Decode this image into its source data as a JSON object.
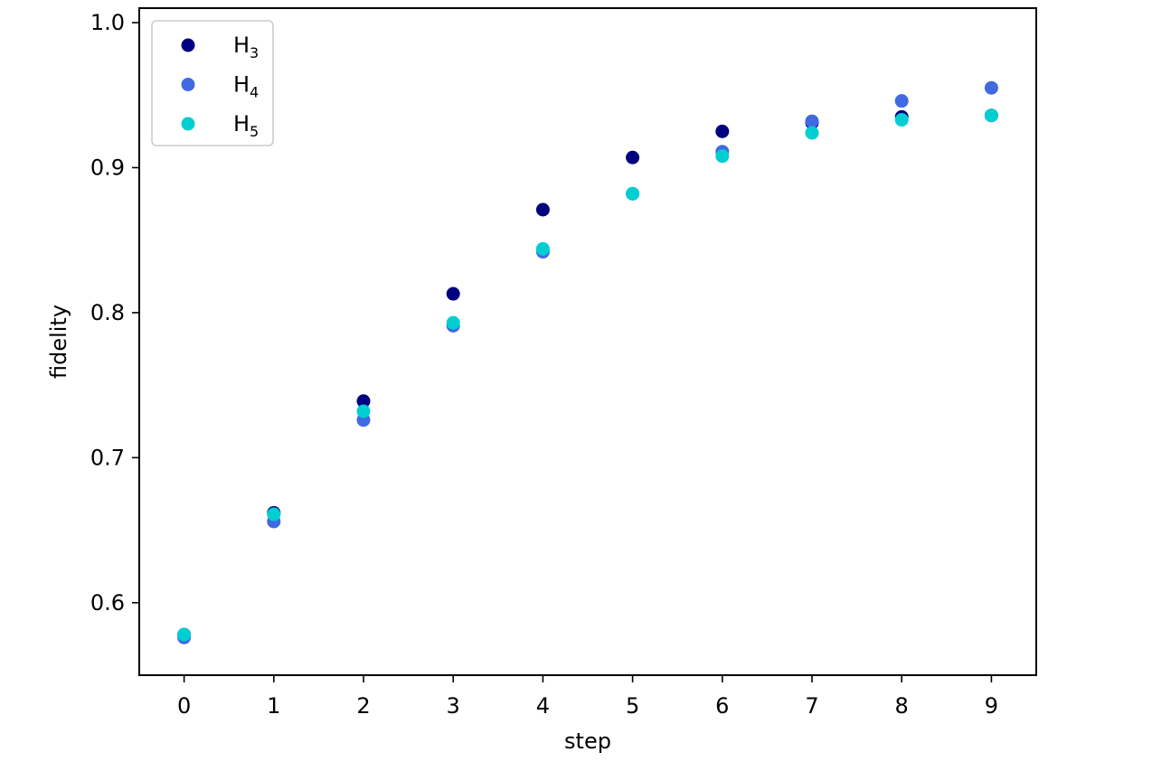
{
  "chart_data": {
    "type": "scatter",
    "title": "",
    "xlabel": "step",
    "ylabel": "fidelity",
    "xlim": [
      -0.5,
      9.5
    ],
    "ylim": [
      0.55,
      1.01
    ],
    "xticks": [
      0,
      1,
      2,
      3,
      4,
      5,
      6,
      7,
      8,
      9
    ],
    "yticks": [
      0.6,
      0.7,
      0.8,
      0.9,
      1.0
    ],
    "ytick_labels": [
      "0.6",
      "0.7",
      "0.8",
      "0.9",
      "1.0"
    ],
    "grid": false,
    "legend_position": "top-left",
    "x": [
      0,
      1,
      2,
      3,
      4,
      5,
      6,
      7,
      8,
      9
    ],
    "series": [
      {
        "name": "H",
        "subscript": "3",
        "color": "#000080",
        "values": [
          0.578,
          0.662,
          0.739,
          0.813,
          0.871,
          0.907,
          0.925,
          0.931,
          0.935,
          0.936
        ]
      },
      {
        "name": "H",
        "subscript": "4",
        "color": "#4169e1",
        "values": [
          0.576,
          0.656,
          0.726,
          0.791,
          0.842,
          0.882,
          0.911,
          0.932,
          0.946,
          0.955
        ]
      },
      {
        "name": "H",
        "subscript": "5",
        "color": "#00ced1",
        "values": [
          0.578,
          0.661,
          0.732,
          0.793,
          0.844,
          0.882,
          0.908,
          0.924,
          0.933,
          0.936
        ]
      }
    ]
  }
}
